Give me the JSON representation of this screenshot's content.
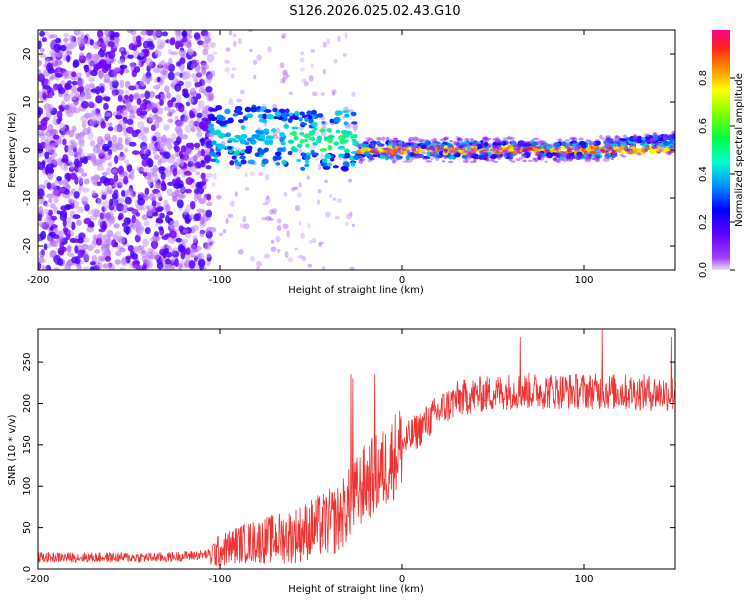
{
  "figure_title": "S126.2026.025.02.43.G10",
  "chart_data": [
    {
      "type": "heatmap",
      "xlabel": "Height of straight line (km)",
      "ylabel": "Frequency (Hz)",
      "xlim": [
        -200,
        150
      ],
      "ylim": [
        -25,
        25
      ],
      "xticks": [
        -200,
        -100,
        0,
        100
      ],
      "yticks": [
        -20,
        -10,
        0,
        10,
        20
      ],
      "colorbar": {
        "label": "Normalized spectral amplitude",
        "range": [
          0,
          1
        ],
        "ticks": [
          "0.0",
          "0.2",
          "0.4",
          "0.6",
          "0.8"
        ],
        "colormap": [
          "#e8d8f8",
          "#8000ff",
          "#0000ff",
          "#00c0ff",
          "#00ff80",
          "#40ff00",
          "#c0ff00",
          "#ffff00",
          "#ffa000",
          "#ff4000",
          "#ff0080"
        ]
      },
      "signal_track": {
        "description_free": true,
        "segments": [
          {
            "x": [
              -105,
              -60
            ],
            "freq_center": 3,
            "amplitude": 0.35
          },
          {
            "x": [
              -60,
              -25
            ],
            "freq_center": 2,
            "amplitude": 0.45
          },
          {
            "x": [
              -25,
              150
            ],
            "freq_center": 0,
            "amplitude": 0.9
          }
        ]
      }
    },
    {
      "type": "line",
      "xlabel": "Height of straight line (km)",
      "ylabel": "SNR (10 * v/v)",
      "xlim": [
        -200,
        150
      ],
      "ylim": [
        0,
        290
      ],
      "xticks": [
        -200,
        -100,
        0,
        100
      ],
      "yticks": [
        0,
        50,
        100,
        150,
        200,
        250
      ],
      "series": [
        {
          "name": "SNR",
          "color": "#ee3333",
          "trend": {
            "x": [
              -200,
              -130,
              -105,
              -90,
              -60,
              -35,
              -25,
              -20,
              -10,
              0,
              10,
              20,
              30,
              40,
              60,
              100,
              150
            ],
            "y": [
              14,
              14,
              18,
              30,
              40,
              60,
              90,
              105,
              120,
              150,
              170,
              190,
              205,
              210,
              215,
              215,
              212
            ]
          },
          "spikes": [
            {
              "x": -28,
              "y": 235
            },
            {
              "x": -27,
              "y": 230
            },
            {
              "x": -15,
              "y": 235
            },
            {
              "x": 65,
              "y": 280
            },
            {
              "x": 110,
              "y": 290
            },
            {
              "x": 148,
              "y": 280
            }
          ]
        }
      ]
    }
  ]
}
